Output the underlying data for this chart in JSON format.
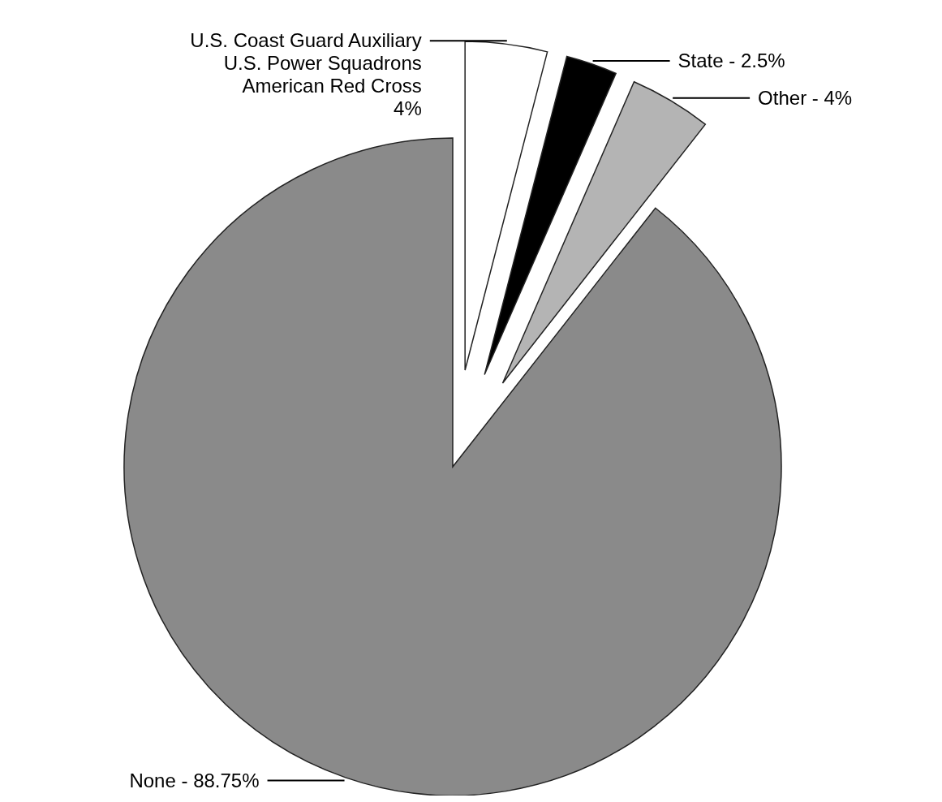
{
  "chart_data": {
    "type": "pie",
    "categories": [
      "U.S. Coast Guard Auxiliary\nU.S. Power Squadrons\nAmerican Red Cross",
      "State",
      "Other",
      "None"
    ],
    "values": [
      4,
      2.5,
      4,
      88.75
    ],
    "value_labels": [
      "4%",
      "2.5%",
      "4%",
      "88.75%"
    ],
    "colors": [
      "#ffffff",
      "#000000",
      "#b4b4b4",
      "#8a8a8a"
    ],
    "legend": false
  }
}
